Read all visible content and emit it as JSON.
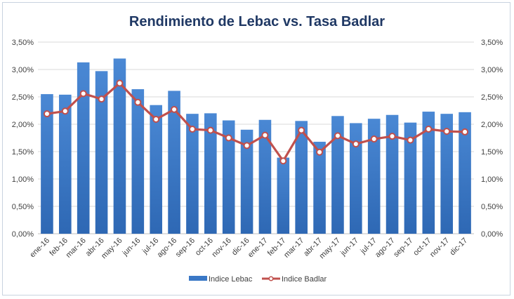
{
  "chart_data": {
    "type": "bar",
    "title": "Rendimiento de Lebac vs. Tasa Badlar",
    "xlabel": "",
    "ylabel": "",
    "ylim": [
      0,
      3.5
    ],
    "yticks": [
      "0,00%",
      "0,50%",
      "1,00%",
      "1,50%",
      "2,00%",
      "2,50%",
      "3,00%",
      "3,50%"
    ],
    "grid": true,
    "legend_position": "bottom",
    "categories": [
      "ene-16",
      "feb-16",
      "mar-16",
      "abr-16",
      "may-16",
      "jun-16",
      "jul-16",
      "ago-16",
      "sep-16",
      "oct-16",
      "nov-16",
      "dic-16",
      "ene-17",
      "feb-17",
      "mar-17",
      "abr-17",
      "may-17",
      "jun-17",
      "jul-17",
      "ago-17",
      "sep-17",
      "oct-17",
      "nov-17",
      "dic-17"
    ],
    "series": [
      {
        "name": "Indice Lebac",
        "type": "bar",
        "color": "#3a78c6",
        "values": [
          2.55,
          2.54,
          3.13,
          2.97,
          3.2,
          2.64,
          2.35,
          2.61,
          2.19,
          2.2,
          2.07,
          1.9,
          2.08,
          1.39,
          2.06,
          1.68,
          2.15,
          2.02,
          2.1,
          2.17,
          2.03,
          2.23,
          2.19,
          2.22
        ]
      },
      {
        "name": "Indice Badlar",
        "type": "line",
        "color": "#c0504d",
        "values": [
          2.19,
          2.24,
          2.56,
          2.46,
          2.75,
          2.4,
          2.09,
          2.27,
          1.91,
          1.89,
          1.75,
          1.61,
          1.8,
          1.33,
          1.89,
          1.49,
          1.79,
          1.64,
          1.73,
          1.78,
          1.71,
          1.91,
          1.87,
          1.86
        ]
      }
    ]
  }
}
